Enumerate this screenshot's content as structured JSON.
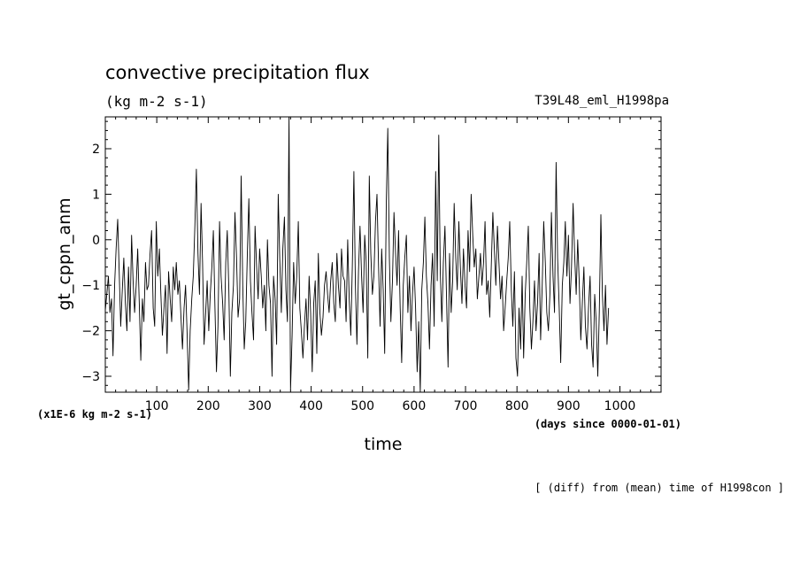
{
  "chart_data": {
    "type": "line",
    "title": "convective precipitation flux",
    "units_label": "(kg m-2 s-1)",
    "run_label": "T39L48_eml_H1998pa",
    "xlabel": "time",
    "x_units": "(days since 0000-01-01)",
    "ylabel": "gt_cppn_anm",
    "y_scale_label": "(x1E-6 kg m-2 s-1)",
    "footnote": "[ (diff) from (mean) time of H1998con ]",
    "xlim": [
      0,
      1080
    ],
    "ylim": [
      -3.35,
      2.7
    ],
    "x_ticks": [
      100,
      200,
      300,
      400,
      500,
      600,
      700,
      800,
      900,
      1000
    ],
    "x_tick_labels": [
      "100",
      "200",
      "300",
      "400",
      "500",
      "600",
      "700",
      "800",
      "900",
      "1000"
    ],
    "y_ticks": [
      -3,
      -2,
      -1,
      0,
      1,
      2
    ],
    "y_tick_labels": [
      "−3",
      "−2",
      "−1",
      "0",
      "1",
      "2"
    ],
    "series": [
      {
        "name": "gt_cppn_anm",
        "x_start": 0,
        "x_step": 3,
        "values": [
          -1.55,
          -1.2,
          -0.8,
          -1.6,
          -1.3,
          -2.55,
          -1.0,
          -0.2,
          0.45,
          -0.7,
          -1.9,
          -1.1,
          -0.4,
          -1.4,
          -2.0,
          -0.6,
          -1.8,
          0.1,
          -0.9,
          -1.6,
          -1.0,
          -0.2,
          -1.4,
          -2.65,
          -1.3,
          -1.8,
          -0.5,
          -1.1,
          -1.0,
          -0.3,
          0.2,
          -1.5,
          -1.9,
          0.4,
          -0.8,
          -0.2,
          -1.2,
          -2.1,
          -1.5,
          -1.0,
          -2.5,
          -0.7,
          -1.3,
          -1.8,
          -0.6,
          -1.1,
          -0.5,
          -1.2,
          -0.9,
          -1.7,
          -2.4,
          -1.5,
          -1.0,
          -2.1,
          -3.3,
          -2.0,
          -1.3,
          -0.8,
          0.3,
          1.55,
          -0.3,
          -1.2,
          0.8,
          -0.5,
          -2.3,
          -1.6,
          -0.9,
          -2.0,
          -1.2,
          -0.6,
          0.2,
          -1.5,
          -2.9,
          -1.9,
          0.4,
          -0.8,
          -1.4,
          -2.2,
          -0.5,
          0.2,
          -1.1,
          -3.0,
          -1.6,
          -1.0,
          0.6,
          -0.4,
          -1.7,
          -1.3,
          1.4,
          -1.0,
          -2.4,
          -1.8,
          -0.3,
          0.9,
          -0.9,
          -1.6,
          -2.2,
          0.3,
          -0.6,
          -1.3,
          -0.2,
          -0.8,
          -1.5,
          -1.0,
          -2.0,
          0.0,
          -1.0,
          -1.4,
          -3.0,
          -0.8,
          -1.3,
          -2.3,
          1.0,
          -0.4,
          -1.6,
          -0.2,
          0.5,
          -1.1,
          -1.8,
          2.75,
          -3.3,
          -2.1,
          -0.5,
          -1.4,
          -0.8,
          0.4,
          -1.5,
          -2.0,
          -2.6,
          -1.9,
          -1.3,
          -2.2,
          -0.8,
          -1.6,
          -2.9,
          -1.4,
          -0.9,
          -2.5,
          -0.3,
          -1.6,
          -2.1,
          -1.7,
          -1.0,
          -0.7,
          -1.2,
          -1.6,
          -0.9,
          -0.5,
          -1.4,
          -1.8,
          -0.3,
          -1.0,
          -1.5,
          -0.2,
          -0.8,
          -0.9,
          -1.8,
          0.0,
          -1.3,
          -2.1,
          -0.6,
          1.5,
          -1.0,
          -2.3,
          -0.7,
          0.3,
          -0.8,
          -1.6,
          0.1,
          -0.5,
          -2.6,
          1.4,
          -0.3,
          -1.2,
          -0.8,
          0.4,
          1.0,
          -0.6,
          -1.9,
          -0.2,
          -1.1,
          -2.5,
          0.8,
          2.45,
          -0.4,
          -1.8,
          -0.9,
          0.6,
          -0.3,
          -1.0,
          0.2,
          -1.5,
          -2.7,
          -1.0,
          -0.4,
          0.1,
          -1.6,
          -0.8,
          -2.0,
          -1.2,
          -0.6,
          -1.5,
          -2.9,
          -1.8,
          -3.35,
          -1.1,
          -0.5,
          0.5,
          -0.8,
          -1.4,
          -2.4,
          -1.0,
          -0.3,
          -1.9,
          1.5,
          -0.9,
          2.3,
          -0.7,
          -1.8,
          -0.5,
          0.3,
          -1.2,
          -2.8,
          -0.3,
          -1.6,
          -0.9,
          0.8,
          -0.4,
          -1.1,
          0.4,
          -0.6,
          -1.4,
          -0.2,
          -1.0,
          -1.5,
          0.2,
          -0.7,
          1.0,
          0.1,
          -0.6,
          -0.2,
          -1.3,
          -0.8,
          -0.3,
          -1.0,
          -0.5,
          0.4,
          -1.2,
          -0.9,
          -1.7,
          -0.6,
          0.6,
          -0.2,
          -1.0,
          0.3,
          -0.5,
          -1.3,
          -0.8,
          -2.0,
          -1.5,
          -0.9,
          -0.4,
          0.4,
          -1.1,
          -1.9,
          -0.7,
          -2.6,
          -3.0,
          -1.5,
          -2.4,
          -0.8,
          -2.6,
          -1.2,
          -0.5,
          0.3,
          -1.5,
          -2.4,
          -1.8,
          -0.9,
          -2.0,
          -1.4,
          -0.3,
          -2.2,
          -1.0,
          0.4,
          -0.5,
          -1.6,
          -2.0,
          -1.2,
          0.6,
          -0.8,
          -1.6,
          1.7,
          -0.4,
          -1.5,
          -2.7,
          -1.0,
          -0.5,
          0.4,
          -0.8,
          0.1,
          -1.4,
          -0.6,
          0.8,
          -0.3,
          -1.2,
          0.0,
          -0.9,
          -2.2,
          -1.4,
          -0.6,
          -1.9,
          -2.4,
          -1.5,
          -0.8,
          -2.3,
          -2.8,
          -1.2,
          -1.8,
          -3.0,
          -1.6,
          0.55,
          -1.2,
          -2.0,
          -1.0,
          -2.3,
          -1.5
        ]
      }
    ]
  }
}
